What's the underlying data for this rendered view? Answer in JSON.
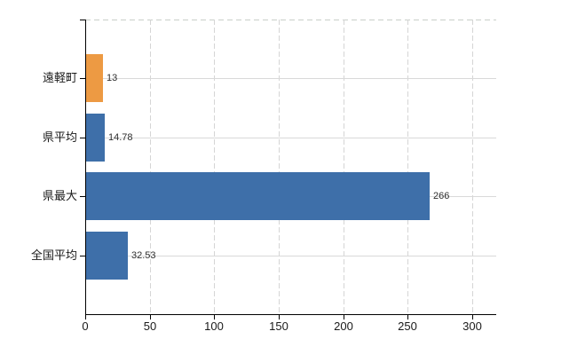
{
  "chart_data": {
    "type": "bar",
    "orientation": "horizontal",
    "title": "",
    "xlabel": "",
    "ylabel": "",
    "categories": [
      "遠軽町",
      "県平均",
      "県最大",
      "全国平均"
    ],
    "values": [
      13,
      14.78,
      266,
      32.53
    ],
    "value_labels": [
      "13",
      "14.78",
      "266",
      "32.53"
    ],
    "bar_colors": [
      "#ED9A43",
      "#3E6FA9",
      "#3E6FA9",
      "#3E6FA9"
    ],
    "x_ticks": [
      0,
      50,
      100,
      150,
      200,
      250,
      300
    ],
    "x_tick_labels": [
      "0",
      "50",
      "100",
      "150",
      "200",
      "250",
      "300"
    ],
    "xlim": [
      0,
      318.6
    ],
    "grid": true,
    "legend_position": "none"
  },
  "colors": {
    "background": "#FFFFFF",
    "axis": "#000000",
    "grid": "#D9D9D9",
    "top_border": "#C9CFC9",
    "bar_highlight": "#ED9A43",
    "bar_default": "#3E6FA9",
    "tick_label": "#1A1A1A",
    "value_label": "#2E2E2E"
  }
}
